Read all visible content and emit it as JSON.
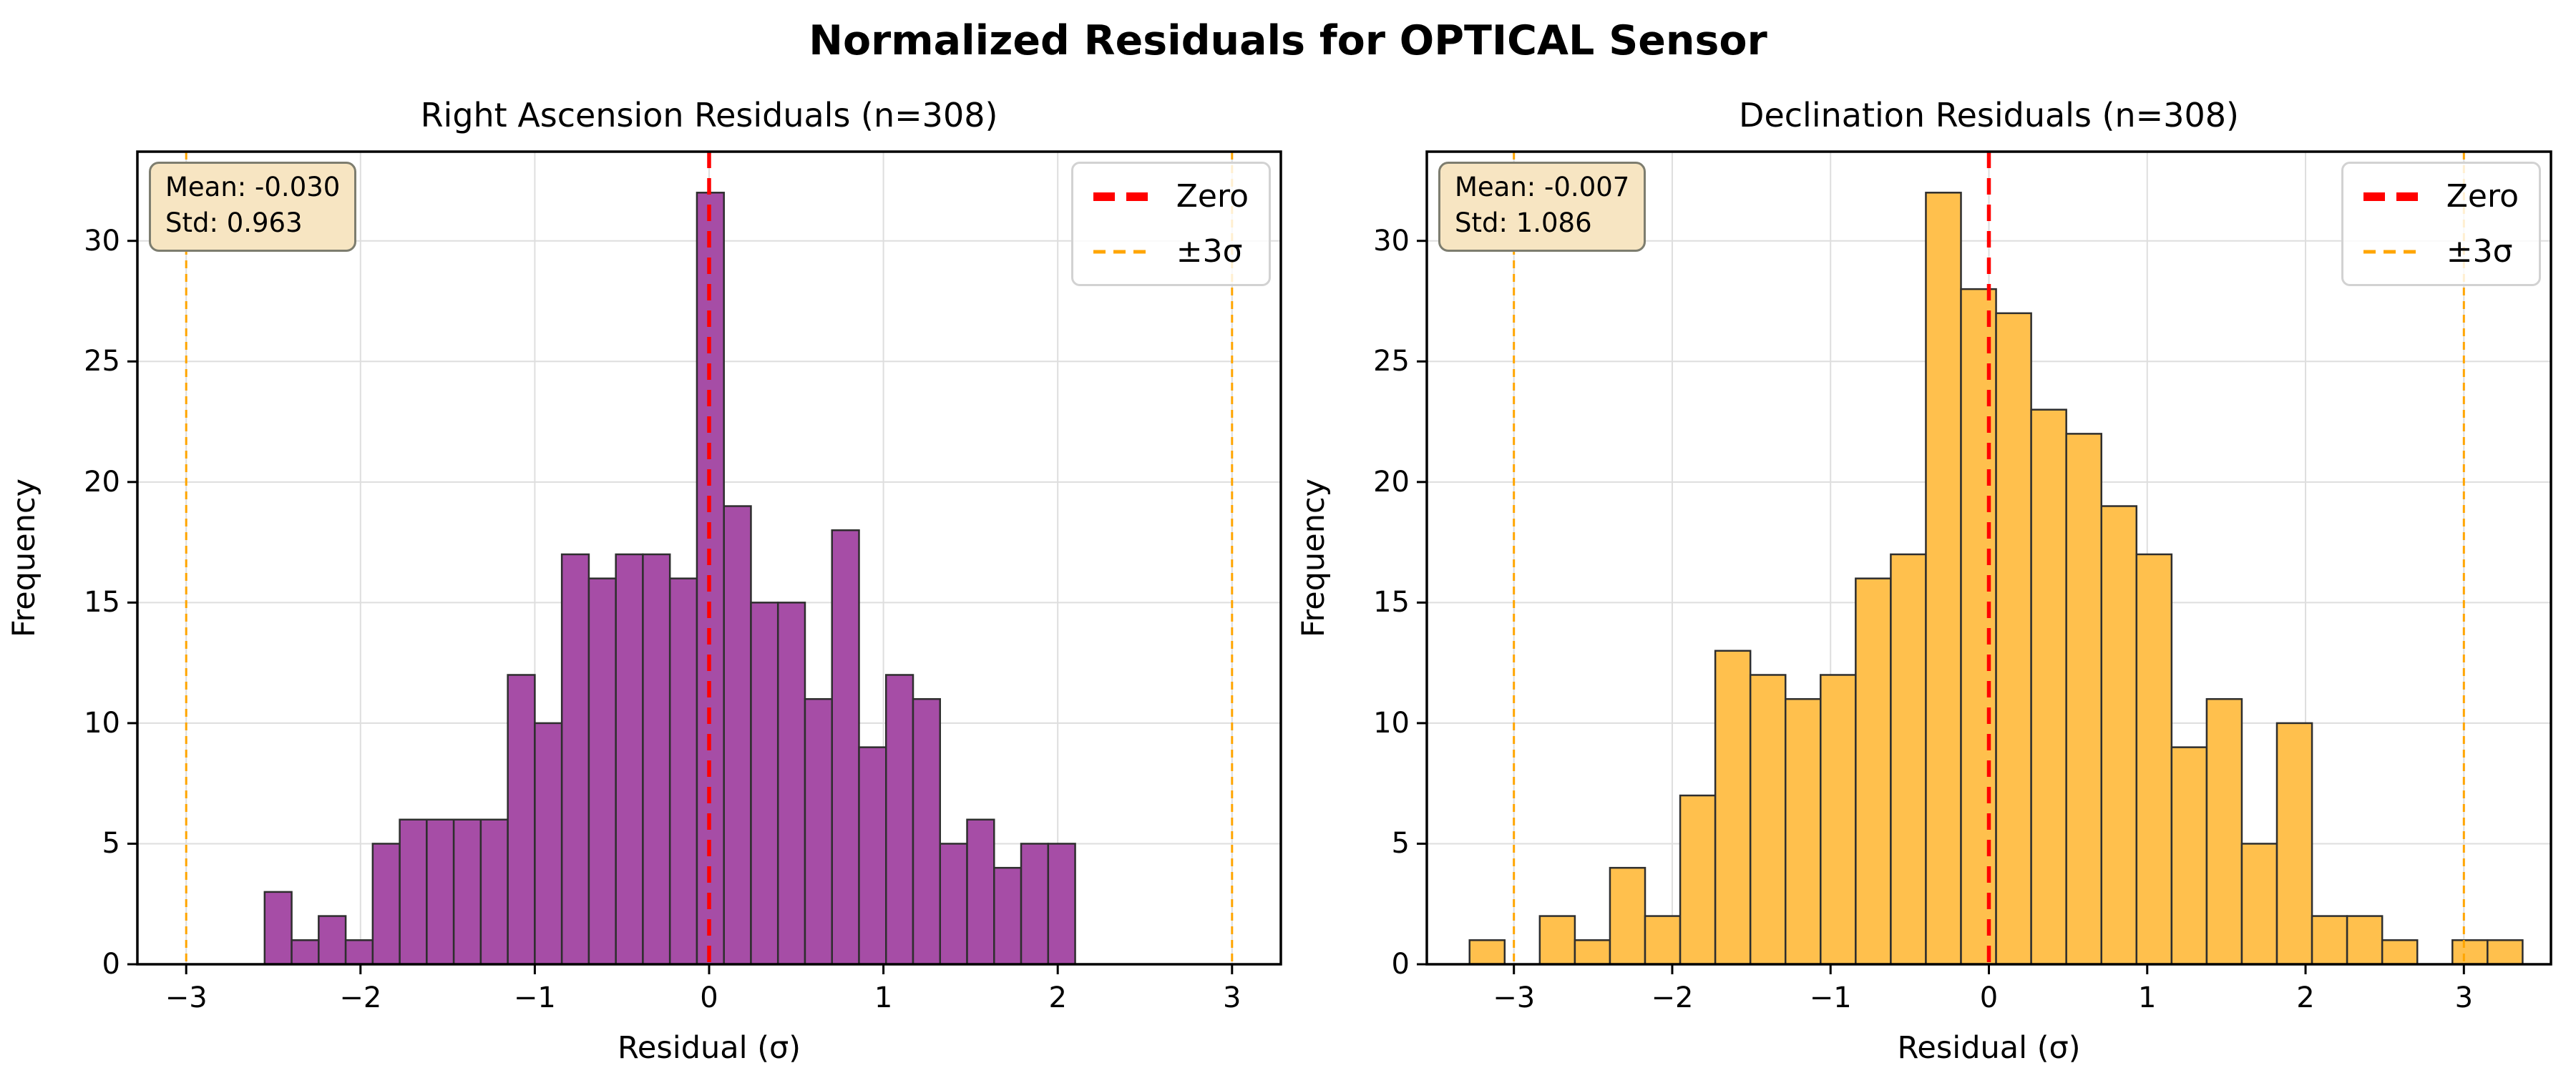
{
  "figure": {
    "suptitle": "Normalized Residuals for OPTICAL Sensor",
    "background": "#ffffff"
  },
  "colors": {
    "bar_edge": "#2e2e2e",
    "zero_line": "#ff0000",
    "sigma_line": "#ffa500",
    "grid": "#dedede",
    "axis": "#000000",
    "stats_bg": "#f7e5c2",
    "stats_border": "#7d7d6f",
    "legend_border": "#d2d2d2"
  },
  "legend": {
    "zero_label": "Zero",
    "sigma_label": "±3σ"
  },
  "chart_data": [
    {
      "type": "bar",
      "subtype": "histogram",
      "title": "Right Ascension Residuals (n=308)",
      "xlabel": "Residual (σ)",
      "ylabel": "Frequency",
      "n": 308,
      "mean": -0.03,
      "std": 0.963,
      "stats": {
        "mean_label": "Mean: -0.030",
        "std_label": "Std: 0.963"
      },
      "bar_color": "#a64da6",
      "bin_start": -2.55,
      "bin_width": 0.155,
      "counts": [
        3,
        1,
        2,
        1,
        5,
        6,
        6,
        6,
        6,
        12,
        10,
        17,
        16,
        17,
        17,
        16,
        32,
        19,
        15,
        15,
        11,
        18,
        9,
        12,
        11,
        5,
        6,
        4,
        5,
        5
      ],
      "xlim": [
        -3.28,
        3.28
      ],
      "ylim": [
        0,
        33.7
      ],
      "xticks": [
        -3,
        -2,
        -1,
        0,
        1,
        2,
        3
      ],
      "xtick_labels": [
        "−3",
        "−2",
        "−1",
        "0",
        "1",
        "2",
        "3"
      ],
      "yticks": [
        0,
        5,
        10,
        15,
        20,
        25,
        30
      ],
      "ytick_labels": [
        "0",
        "5",
        "10",
        "15",
        "20",
        "25",
        "30"
      ],
      "zero_line_x": 0,
      "sigma_lines_x": [
        -3,
        3
      ],
      "grid": true,
      "legend_position": "upper right"
    },
    {
      "type": "bar",
      "subtype": "histogram",
      "title": "Declination Residuals (n=308)",
      "xlabel": "Residual (σ)",
      "ylabel": "Frequency",
      "n": 308,
      "mean": -0.007,
      "std": 1.086,
      "stats": {
        "mean_label": "Mean: -0.007",
        "std_label": "Std: 1.086"
      },
      "bar_color": "#ffc04d",
      "bin_start": -3.28,
      "bin_width": 0.2217,
      "counts": [
        1,
        0,
        2,
        1,
        4,
        2,
        7,
        13,
        12,
        11,
        12,
        16,
        17,
        32,
        28,
        27,
        23,
        22,
        19,
        17,
        9,
        11,
        5,
        10,
        2,
        2,
        1,
        0,
        1,
        1
      ],
      "xlim": [
        -3.55,
        3.55
      ],
      "ylim": [
        0,
        33.7
      ],
      "xticks": [
        -3,
        -2,
        -1,
        0,
        1,
        2,
        3
      ],
      "xtick_labels": [
        "−3",
        "−2",
        "−1",
        "0",
        "1",
        "2",
        "3"
      ],
      "yticks": [
        0,
        5,
        10,
        15,
        20,
        25,
        30
      ],
      "ytick_labels": [
        "0",
        "5",
        "10",
        "15",
        "20",
        "25",
        "30"
      ],
      "zero_line_x": 0,
      "sigma_lines_x": [
        -3,
        3
      ],
      "grid": true,
      "legend_position": "upper right"
    }
  ]
}
